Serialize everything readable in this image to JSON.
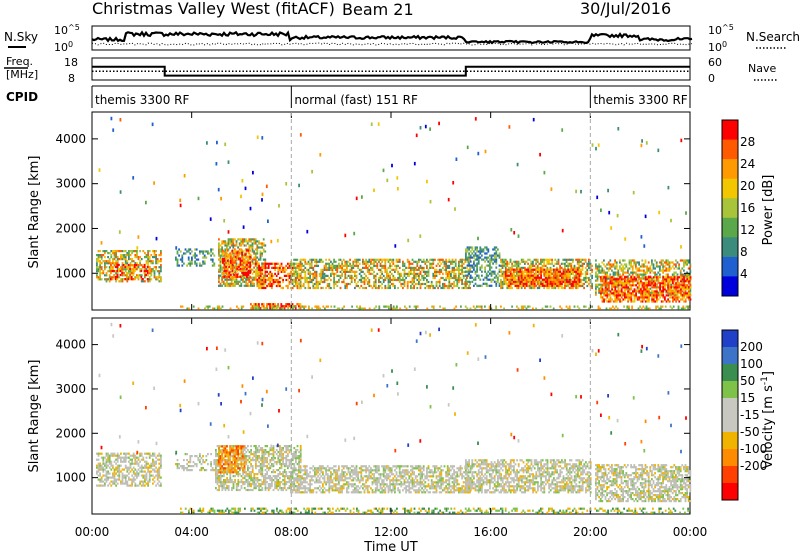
{
  "header": {
    "station": "Christmas Valley West (fitACF)",
    "beam": "Beam 21",
    "date": "30/Jul/2016"
  },
  "side_labels": {
    "nsky": "N.Sky",
    "nsearch": "N.Search",
    "freq_line1": "Freq.",
    "freq_line2": "[MHz]",
    "nave": "Nave",
    "cpid": "CPID"
  },
  "chart_data": [
    {
      "type": "line",
      "panel": "noise",
      "series": [
        {
          "name": "N.Sky",
          "style": "solid"
        },
        {
          "name": "N.Search",
          "style": "dotted"
        }
      ],
      "yticks": [
        "10^5",
        "10^0"
      ],
      "right_yticks": [
        "10^5",
        "10^0"
      ]
    },
    {
      "type": "line",
      "panel": "frequency",
      "series": [
        {
          "name": "Freq.",
          "style": "solid",
          "x": [
            "00:00",
            "02:55",
            "02:55",
            "15:00",
            "15:00",
            "24:00"
          ],
          "values": [
            14,
            14,
            10,
            10,
            14,
            14
          ]
        },
        {
          "name": "Nave",
          "style": "dotted",
          "values": [
            24,
            24
          ]
        }
      ],
      "yticks": [
        18,
        8
      ],
      "right_yticks": [
        60,
        0
      ]
    },
    {
      "type": "table",
      "panel": "cpid",
      "segments": [
        {
          "label": "themis 3300 RF",
          "start": "00:00",
          "end": "08:00"
        },
        {
          "label": "normal (fast) 151 RF",
          "start": "08:00",
          "end": "20:00"
        },
        {
          "label": "themis 3300 RF",
          "start": "20:00",
          "end": "24:00"
        }
      ]
    },
    {
      "type": "heatmap",
      "panel": "power",
      "ylabel": "Slant Range [km]",
      "ylim": [
        180,
        4600
      ],
      "yticks": [
        1000,
        2000,
        3000,
        4000
      ],
      "xlim": [
        "00:00",
        "24:00"
      ],
      "colorbar": {
        "label": "Power [dB]",
        "ticks": [
          4,
          8,
          12,
          16,
          20,
          24,
          28
        ],
        "range": [
          0,
          32
        ]
      }
    },
    {
      "type": "heatmap",
      "panel": "velocity",
      "ylabel": "Slant Range [km]",
      "xlabel": "Time UT",
      "ylim": [
        180,
        4600
      ],
      "yticks": [
        1000,
        2000,
        3000,
        4000
      ],
      "xticks": [
        "00:00",
        "04:00",
        "08:00",
        "12:00",
        "16:00",
        "20:00",
        "00:00"
      ],
      "colorbar": {
        "label": "Velocity [m s^-1]",
        "ticks": [
          200,
          100,
          50,
          15,
          -15,
          -50,
          -100,
          -200
        ]
      }
    }
  ],
  "colors": {
    "power_scale": [
      "#0000dc",
      "#1f5fd0",
      "#3b8c7d",
      "#5aa84a",
      "#a8c43a",
      "#f2c600",
      "#ff9a00",
      "#ff5a00",
      "#ff0000"
    ],
    "velocity_scale": [
      "#2040c8",
      "#3e74c8",
      "#3a8f50",
      "#7fc24a",
      "#c8c8c0",
      "#c8c8c0",
      "#f0b400",
      "#ff8c00",
      "#ff4000",
      "#ff0000"
    ],
    "ground_scatter": "#bfbfb8"
  }
}
